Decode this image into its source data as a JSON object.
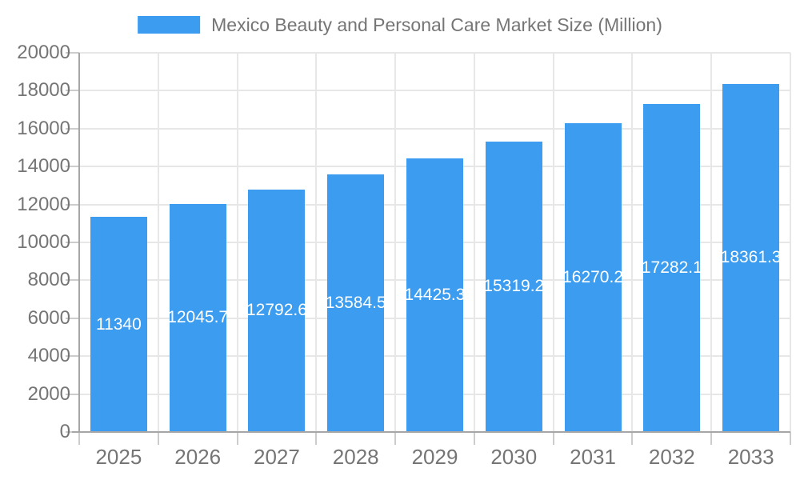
{
  "chart_data": {
    "type": "bar",
    "title": "Mexico Beauty and Personal Care Market Size (Million)",
    "categories": [
      "2025",
      "2026",
      "2027",
      "2028",
      "2029",
      "2030",
      "2031",
      "2032",
      "2033"
    ],
    "values": [
      11340,
      12045.7,
      12792.6,
      13584.5,
      14425.3,
      15319.2,
      16270.2,
      17282.1,
      18361.3
    ],
    "bar_labels": [
      "11340",
      "12045.7",
      "12792.6",
      "13584.5",
      "14425.3",
      "15319.2",
      "16270.2",
      "17282.1",
      "18361.3"
    ],
    "xlabel": "",
    "ylabel": "",
    "ylim": [
      0,
      20000
    ],
    "ytick_interval": 2000,
    "yticks": [
      "0",
      "2000",
      "4000",
      "6000",
      "8000",
      "10000",
      "12000",
      "14000",
      "16000",
      "18000",
      "20000"
    ],
    "grid": true,
    "legend_position": "top",
    "annotation_position": "inside-center",
    "colors": {
      "bar": "#3b9cf0",
      "annotation_text": "#ffffff",
      "axis_label_text": "#757575",
      "legend_text": "#757575",
      "gridline": "#e7e7e7",
      "axis_line": "#a6a6a6",
      "tick": "#cccccc",
      "background": "#ffffff"
    }
  }
}
